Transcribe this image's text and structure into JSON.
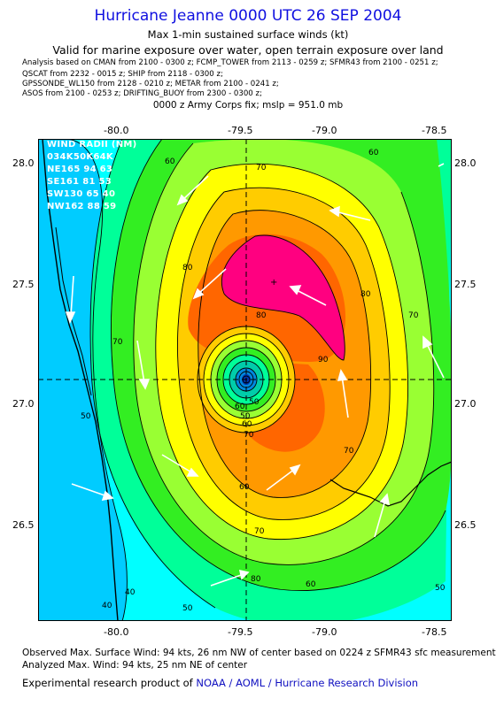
{
  "header": {
    "title": "Hurricane Jeanne 0000 UTC 26 SEP 2004",
    "subtitle": "Max 1-min sustained surface winds (kt)",
    "valid": "Valid for marine exposure over water, open terrain exposure over land"
  },
  "sources": [
    "Analysis based on  CMAN from 2100 - 0300 z;  FCMP_TOWER from 2113 - 0259 z;  SFMR43 from 2100 - 0251 z;",
    "QSCAT from 2232 - 0015 z;  SHIP from 2118 - 0300 z;",
    "GPSSONDE_WL150 from 2128 - 0210 z;  METAR from 2100 - 0241 z;",
    "ASOS from 2100 - 0253 z;  DRIFTING_BUOY from 2300 - 0300 z;"
  ],
  "fix_text": "0000 z Army Corps fix; mslp = 951.0 mb",
  "axes": {
    "x_ticks": [
      "-80.0",
      "-79.5",
      "-79.0",
      "-78.5"
    ],
    "y_ticks": [
      "28.0",
      "27.5",
      "27.0",
      "26.5"
    ]
  },
  "wind_radii": {
    "header": "WIND RADII (NM)",
    "cols": "034K50K64K",
    "rows": [
      "NE165 94 63",
      "SE161 81 53",
      "SW130 65 40",
      "NW162 88 59"
    ]
  },
  "contour_labels": [
    "60",
    "70",
    "80",
    "90",
    "80",
    "70",
    "60",
    "50",
    "50",
    "60",
    "70",
    "80",
    "60",
    "70",
    "50",
    "40",
    "50",
    "60",
    "70",
    "80",
    "70",
    "60",
    "50",
    "40"
  ],
  "colors": {
    "title": "#1010e0",
    "bands": [
      "#00ccff",
      "#00ffff",
      "#00ff99",
      "#33ee22",
      "#99ff33",
      "#ffff00",
      "#ffcc00",
      "#ff9900",
      "#ff6600",
      "#ff0080"
    ]
  },
  "footer": {
    "observed": "Observed Max. Surface Wind: 94 kts, 26 nm NW of center based on 0224 z SFMR43 sfc measurement",
    "analyzed": "Analyzed Max. Wind: 94 kts, 25 nm NE of center",
    "credit_prefix": "Experimental research product of",
    "credit_org": "NOAA / AOML / Hurricane Research Division"
  }
}
